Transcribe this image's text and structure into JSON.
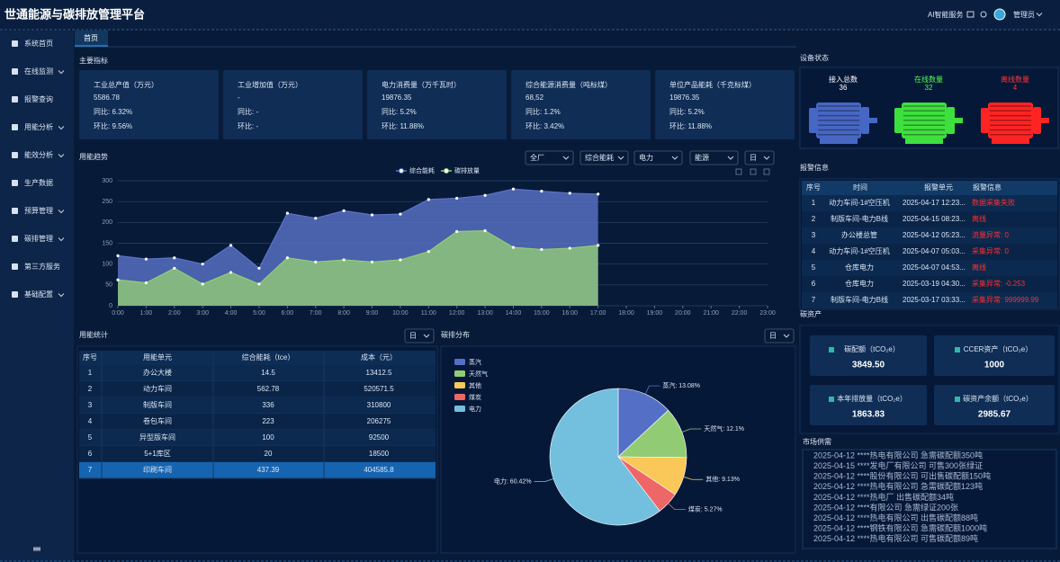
{
  "header": {
    "title": "世通能源与碳排放管理平台",
    "ai": "AI智能服务",
    "user": "管理员"
  },
  "sidebar": [
    {
      "label": "系统首页",
      "expandable": false
    },
    {
      "label": "在线监测",
      "expandable": true
    },
    {
      "label": "报警查询",
      "expandable": false
    },
    {
      "label": "用能分析",
      "expandable": true
    },
    {
      "label": "能效分析",
      "expandable": true
    },
    {
      "label": "生产数据",
      "expandable": false
    },
    {
      "label": "预算管理",
      "expandable": true
    },
    {
      "label": "碳排管理",
      "expandable": true
    },
    {
      "label": "第三方服务",
      "expandable": false
    },
    {
      "label": "基础配置",
      "expandable": true
    }
  ],
  "tab": "首页",
  "kpi": {
    "title": "主要指标",
    "cards": [
      {
        "name": "工业总产值（万元）",
        "value": "5586.78",
        "yoy": "同比: 6.32%",
        "mom": "环比: 9.56%"
      },
      {
        "name": "工业增加值（万元）",
        "value": "-",
        "yoy": "同比: -",
        "mom": "环比: -"
      },
      {
        "name": "电力消费量（万千瓦时）",
        "value": "19876.35",
        "yoy": "同比: 5.2%",
        "mom": "环比: 11.88%"
      },
      {
        "name": "综合能源消费量（吨标煤）",
        "value": "68,52",
        "yoy": "同比: 1.2%",
        "mom": "环比: 3.42%"
      },
      {
        "name": "单位产品能耗（千克标煤）",
        "value": "19876.35",
        "yoy": "同比: 5.2%",
        "mom": "环比: 11.88%"
      }
    ]
  },
  "device": {
    "title": "设备状态",
    "items": [
      {
        "label": "接入总数",
        "value": 36,
        "color": "#4767c4",
        "text_color": "#ffffff"
      },
      {
        "label": "在线数量",
        "value": 32,
        "color": "#3ee03e",
        "text_color": "#4dff4d"
      },
      {
        "label": "离线数量",
        "value": 4,
        "color": "#ff2424",
        "text_color": "#ff3535"
      }
    ]
  },
  "trend": {
    "title": "用能趋势",
    "filters": [
      "全厂",
      "综合能耗",
      "电力",
      "能源",
      "日"
    ],
    "chart": {
      "type": "area",
      "categories": [
        "0:00",
        "1:00",
        "2:00",
        "3:00",
        "4:00",
        "5:00",
        "6:00",
        "7:00",
        "8:00",
        "9:00",
        "10:00",
        "11:00",
        "12:00",
        "13:00",
        "14:00",
        "15:00",
        "16:00",
        "17:00",
        "18:00",
        "19:00",
        "20:00",
        "21:00",
        "22:00",
        "23:00"
      ],
      "series": [
        {
          "name": "综合能耗",
          "color": "#5b73c9",
          "values": [
            120,
            112,
            115,
            100,
            145,
            90,
            222,
            210,
            228,
            218,
            220,
            255,
            258,
            265,
            280,
            275,
            270,
            268,
            null,
            null,
            null,
            null,
            null,
            null
          ]
        },
        {
          "name": "碳排放量",
          "color": "#91cc75",
          "values": [
            62,
            55,
            90,
            52,
            80,
            52,
            115,
            105,
            110,
            105,
            110,
            130,
            178,
            180,
            140,
            135,
            138,
            145,
            null,
            null,
            null,
            null,
            null,
            null
          ]
        }
      ],
      "ylim": [
        0,
        300
      ],
      "yticks": [
        0,
        50,
        100,
        150,
        200,
        250,
        300
      ],
      "grid": true
    }
  },
  "stats": {
    "title": "用能统计",
    "filter": "日",
    "columns": [
      "序号",
      "用能单元",
      "综合能耗（tce）",
      "成本（元）"
    ],
    "rows": [
      [
        1,
        "办公大楼",
        14.5,
        13412.5
      ],
      [
        2,
        "动力车间",
        562.78,
        520571.5
      ],
      [
        3,
        "制版车间",
        336,
        310800
      ],
      [
        4,
        "卷包车间",
        223,
        206275
      ],
      [
        5,
        "异型版车间",
        100,
        92500
      ],
      [
        6,
        "5+1库区",
        20,
        18500
      ],
      [
        7,
        "印刷车间",
        437.39,
        404585.8
      ]
    ],
    "selected_row": 6
  },
  "pie": {
    "title": "碳排分布",
    "filter": "日",
    "chart": {
      "type": "pie",
      "categories": [
        "蒸汽",
        "天然气",
        "其他",
        "煤炭",
        "电力"
      ],
      "values": [
        13.08,
        12.1,
        9.13,
        5.27,
        60.42
      ],
      "value_labels": [
        "蒸汽: 13.08%",
        "天然气: 12.1%",
        "其他: 9.13%",
        "煤炭: 5.27%",
        "电力: 60.42%"
      ],
      "colors": [
        "#5470c6",
        "#91cc75",
        "#fac858",
        "#ee6666",
        "#73c0de"
      ]
    }
  },
  "alarm": {
    "title": "报警信息",
    "columns": [
      "序号",
      "时间",
      "报警单元",
      "报警信息"
    ],
    "rows": [
      [
        1,
        "动力车间-1#空压机",
        "2025-04-17 12:23...",
        "数据采集失败"
      ],
      [
        2,
        "制版车间-电力B线",
        "2025-04-15 08:23...",
        "离线"
      ],
      [
        3,
        "办公楼总管",
        "2025-04-12 05:23...",
        "流量异常: 0"
      ],
      [
        4,
        "动力车间-1#空压机",
        "2025-04-07 05:03...",
        "采集异常: 0"
      ],
      [
        5,
        "仓库电力",
        "2025-04-07 04:53...",
        "离线"
      ],
      [
        6,
        "仓库电力",
        "2025-03-19 04:30...",
        "采集异常: -0.253"
      ],
      [
        7,
        "制版车间-电力B线",
        "2025-03-17 03:33...",
        "采集异常: 999999.99"
      ]
    ]
  },
  "assets": {
    "title": "碳资产",
    "items": [
      {
        "label": "碳配额（tCO₂e）",
        "value": "3849.50"
      },
      {
        "label": "CCER资产（tCO₂e）",
        "value": 1000
      },
      {
        "label": "本年排放量（tCO₂e）",
        "value": 1863.83
      },
      {
        "label": "碳资产余额（tCO₂e）",
        "value": 2985.67
      }
    ]
  },
  "market": {
    "title": "市场供需",
    "items": [
      "2025-04-12 ****热电有限公司 急需碳配额350吨",
      "2025-04-15 ****发电厂有限公司 可售300张绿证",
      "2025-04-12 ****股份有限公司 可出售碳配额150吨",
      "2025-04-12 ****热电有限公司 急需碳配额123吨",
      "2025-04-12 ****热电厂 出售碳配额34吨",
      "2025-04-12 ****有限公司 急需绿证200张",
      "2025-04-12 ****热电有限公司 出售碳配额88吨",
      "2025-04-12 ****钢铁有限公司 急需碳配额1000吨",
      "2025-04-12 ****热电有限公司 可售碳配额89吨"
    ]
  }
}
